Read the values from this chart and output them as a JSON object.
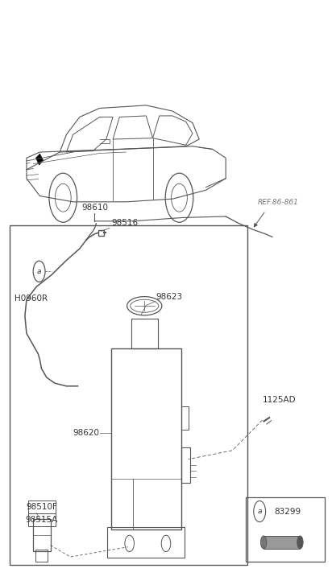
{
  "bg_color": "#ffffff",
  "text_color": "#333333",
  "line_color": "#555555",
  "labels": {
    "ref": "REF.86-861",
    "part_98610": "98610",
    "part_98516": "98516",
    "part_98623": "98623",
    "part_98620": "98620",
    "part_1125AD": "1125AD",
    "part_H0960R": "H0960R",
    "part_98510F": "98510F",
    "part_98515A": "98515A",
    "part_83299": "83299",
    "label_a": "a"
  }
}
